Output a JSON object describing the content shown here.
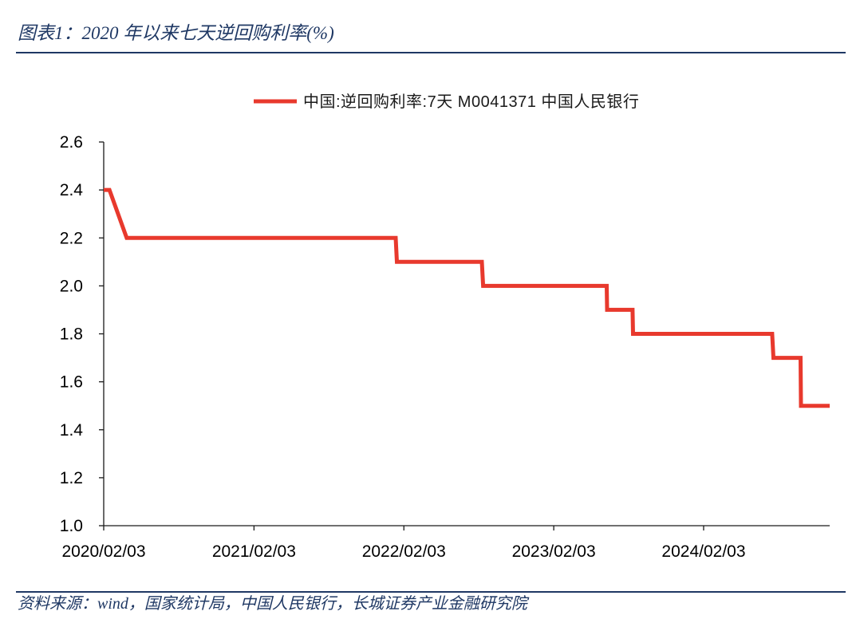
{
  "colors": {
    "caption_text": "#1F3864",
    "caption_rule": "#1F3864",
    "axis": "#1a1a1a",
    "tick_text": "#000000",
    "legend_text": "#1a1a1a"
  },
  "chart_data": {
    "type": "line",
    "title": "图表1：2020 年以来七天逆回购利率(%)",
    "source": "资料来源：wind，国家统计局，中国人民银行，长城证券产业金融研究院",
    "xlim": [
      "2020/02/03",
      "2024/12/06"
    ],
    "ylim": [
      1.0,
      2.6
    ],
    "x_ticks": [
      "2020/02/03",
      "2021/02/03",
      "2022/02/03",
      "2023/02/03",
      "2024/02/03"
    ],
    "y_ticks": [
      "1.0",
      "1.2",
      "1.4",
      "1.6",
      "1.8",
      "2.0",
      "2.2",
      "2.4",
      "2.6"
    ],
    "grid": false,
    "legend": "top-center",
    "series": [
      {
        "name": "中国:逆回购利率:7天 M0041371 中国人民银行",
        "color": "#E8392D",
        "x": [
          "2020/02/03",
          "2020/02/17",
          "2020/03/30",
          "2022/01/14",
          "2022/01/17",
          "2022/08/12",
          "2022/08/15",
          "2023/06/12",
          "2023/06/13",
          "2023/08/14",
          "2023/08/15",
          "2024/07/19",
          "2024/07/22",
          "2024/09/26",
          "2024/09/27",
          "2024/12/06"
        ],
        "values": [
          2.4,
          2.4,
          2.2,
          2.2,
          2.1,
          2.1,
          2.0,
          2.0,
          1.9,
          1.9,
          1.8,
          1.8,
          1.7,
          1.7,
          1.5,
          1.5
        ]
      }
    ]
  }
}
